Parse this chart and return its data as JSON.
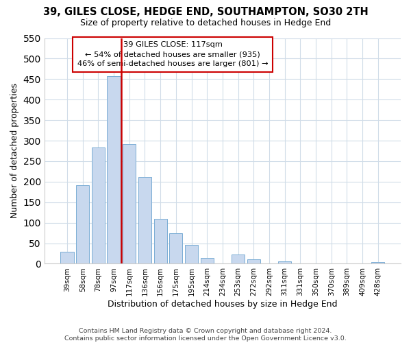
{
  "title": "39, GILES CLOSE, HEDGE END, SOUTHAMPTON, SO30 2TH",
  "subtitle": "Size of property relative to detached houses in Hedge End",
  "xlabel": "Distribution of detached houses by size in Hedge End",
  "ylabel": "Number of detached properties",
  "bar_labels": [
    "39sqm",
    "58sqm",
    "78sqm",
    "97sqm",
    "117sqm",
    "136sqm",
    "156sqm",
    "175sqm",
    "195sqm",
    "214sqm",
    "234sqm",
    "253sqm",
    "272sqm",
    "292sqm",
    "311sqm",
    "331sqm",
    "350sqm",
    "370sqm",
    "389sqm",
    "409sqm",
    "428sqm"
  ],
  "bar_values": [
    30,
    192,
    283,
    457,
    292,
    212,
    110,
    74,
    46,
    14,
    0,
    22,
    10,
    0,
    5,
    0,
    0,
    0,
    0,
    0,
    4
  ],
  "bar_color": "#c8d8ee",
  "bar_edge_color": "#7aadd4",
  "vline_x_index": 4,
  "vline_color": "#cc0000",
  "annotation_title": "39 GILES CLOSE: 117sqm",
  "annotation_line1": "← 54% of detached houses are smaller (935)",
  "annotation_line2": "46% of semi-detached houses are larger (801) →",
  "ylim": [
    0,
    550
  ],
  "yticks": [
    0,
    50,
    100,
    150,
    200,
    250,
    300,
    350,
    400,
    450,
    500,
    550
  ],
  "footer1": "Contains HM Land Registry data © Crown copyright and database right 2024.",
  "footer2": "Contains public sector information licensed under the Open Government Licence v3.0.",
  "bg_color": "#ffffff",
  "grid_color": "#d0dce8"
}
